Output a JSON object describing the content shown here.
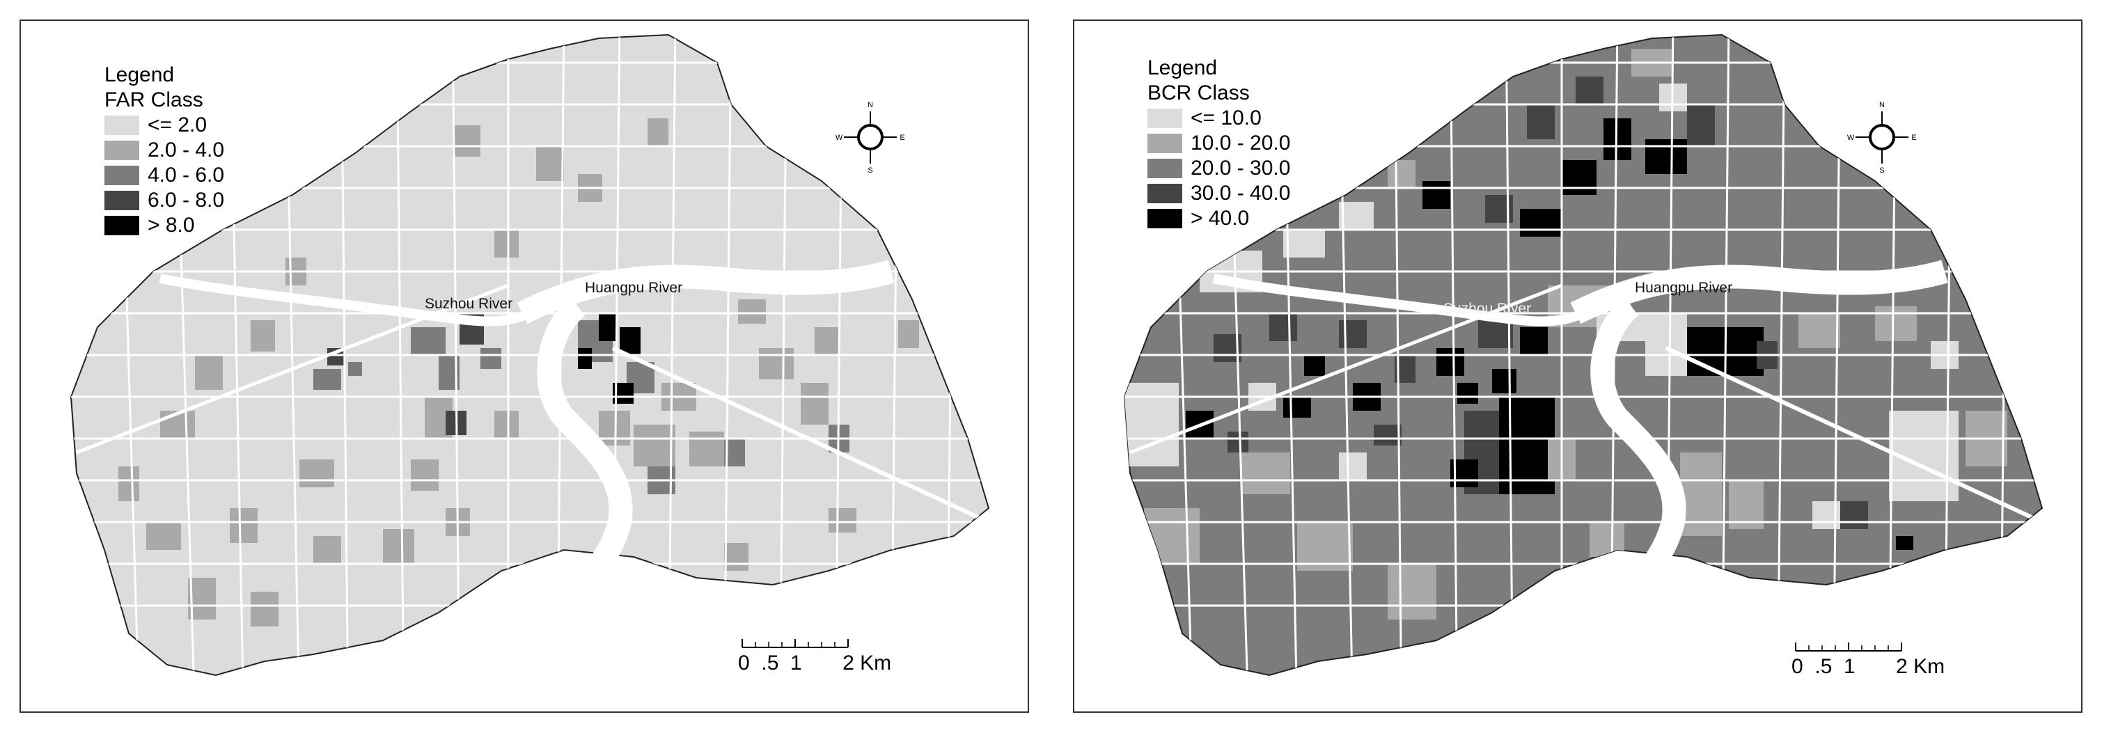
{
  "maps": [
    {
      "id": "far",
      "legend": {
        "heading": "Legend",
        "class_title": "FAR Class",
        "items": [
          {
            "label": "<= 2.0",
            "color": "#dcdcdc"
          },
          {
            "label": "2.0 - 4.0",
            "color": "#a9a9a9"
          },
          {
            "label": "4.0 - 6.0",
            "color": "#7c7c7c"
          },
          {
            "label": "6.0 - 8.0",
            "color": "#444444"
          },
          {
            "label": "> 8.0",
            "color": "#000000"
          }
        ]
      },
      "rivers": {
        "suzhou": "Suzhou River",
        "huangpu": "Huangpu River"
      },
      "scale": {
        "ticks": "0  .5  1       2",
        "unit": "Km"
      },
      "compass": {
        "n": "N",
        "s": "S",
        "e": "E",
        "w": "W"
      }
    },
    {
      "id": "bcr",
      "legend": {
        "heading": "Legend",
        "class_title": "BCR Class",
        "items": [
          {
            "label": "<= 10.0",
            "color": "#dcdcdc"
          },
          {
            "label": "10.0 - 20.0",
            "color": "#a9a9a9"
          },
          {
            "label": "20.0 - 30.0",
            "color": "#7c7c7c"
          },
          {
            "label": "30.0 - 40.0",
            "color": "#444444"
          },
          {
            "label": "> 40.0",
            "color": "#000000"
          }
        ]
      },
      "rivers": {
        "suzhou": "Suzhou River",
        "huangpu": "Huangpu River"
      },
      "scale": {
        "ticks": "0  .5  1       2",
        "unit": "Km"
      },
      "compass": {
        "n": "N",
        "s": "S",
        "e": "E",
        "w": "W"
      }
    }
  ]
}
